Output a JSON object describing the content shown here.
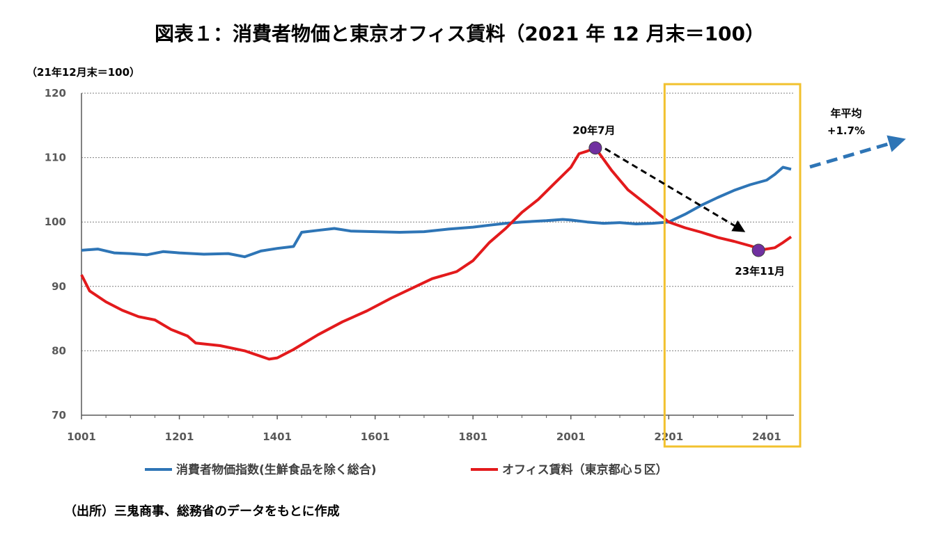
{
  "title": "図表１：消費者物価と東京オフィス賃料（2021 年 12 月末＝100）",
  "source": "（出所）三鬼商事、総務省のデータをもとに作成",
  "colors": {
    "cpi": "#2E75B6",
    "rent": "#E31A1C",
    "highlight": "#F2C12E",
    "marker": "#7030A0",
    "grid": "#7F7F7F"
  },
  "chart_data": {
    "type": "line",
    "unit_label": "（21年12月末＝100）",
    "ylim": [
      70,
      120
    ],
    "yticks": [
      70,
      80,
      90,
      100,
      110,
      120
    ],
    "x_start": "2010-01",
    "x_end": "2024-06",
    "xtick_labels": [
      "1001",
      "1201",
      "1401",
      "1601",
      "1801",
      "2001",
      "2201",
      "2401"
    ],
    "xtick_months": [
      0,
      24,
      48,
      72,
      96,
      120,
      144,
      168
    ],
    "grid": true,
    "series": [
      {
        "name": "消費者物価指数(生鮮食品を除く総合)",
        "color": "#2E75B6",
        "points": [
          [
            0,
            95.6
          ],
          [
            4,
            95.8
          ],
          [
            8,
            95.2
          ],
          [
            12,
            95.1
          ],
          [
            16,
            94.9
          ],
          [
            20,
            95.4
          ],
          [
            24,
            95.2
          ],
          [
            30,
            95.0
          ],
          [
            36,
            95.1
          ],
          [
            40,
            94.6
          ],
          [
            44,
            95.5
          ],
          [
            48,
            95.9
          ],
          [
            52,
            96.2
          ],
          [
            54,
            98.4
          ],
          [
            58,
            98.7
          ],
          [
            62,
            99.0
          ],
          [
            66,
            98.6
          ],
          [
            72,
            98.5
          ],
          [
            78,
            98.4
          ],
          [
            84,
            98.5
          ],
          [
            90,
            98.9
          ],
          [
            96,
            99.2
          ],
          [
            100,
            99.5
          ],
          [
            104,
            99.8
          ],
          [
            108,
            100.0
          ],
          [
            114,
            100.2
          ],
          [
            118,
            100.4
          ],
          [
            120,
            100.3
          ],
          [
            124,
            100.0
          ],
          [
            128,
            99.8
          ],
          [
            132,
            99.9
          ],
          [
            136,
            99.7
          ],
          [
            140,
            99.8
          ],
          [
            144,
            100.0
          ],
          [
            148,
            101.2
          ],
          [
            152,
            102.6
          ],
          [
            156,
            103.8
          ],
          [
            160,
            104.9
          ],
          [
            164,
            105.8
          ],
          [
            168,
            106.5
          ],
          [
            170,
            107.4
          ],
          [
            172,
            108.5
          ],
          [
            174,
            108.2
          ]
        ]
      },
      {
        "name": "オフィス賃料（東京都心５区）",
        "color": "#E31A1C",
        "points": [
          [
            0,
            91.8
          ],
          [
            2,
            89.3
          ],
          [
            6,
            87.6
          ],
          [
            10,
            86.3
          ],
          [
            14,
            85.3
          ],
          [
            18,
            84.8
          ],
          [
            22,
            83.3
          ],
          [
            26,
            82.3
          ],
          [
            28,
            81.2
          ],
          [
            34,
            80.8
          ],
          [
            40,
            80.0
          ],
          [
            46,
            78.7
          ],
          [
            48,
            78.9
          ],
          [
            52,
            80.2
          ],
          [
            58,
            82.5
          ],
          [
            64,
            84.5
          ],
          [
            70,
            86.2
          ],
          [
            76,
            88.2
          ],
          [
            82,
            90.0
          ],
          [
            86,
            91.2
          ],
          [
            92,
            92.3
          ],
          [
            96,
            94.0
          ],
          [
            100,
            96.8
          ],
          [
            104,
            99.0
          ],
          [
            108,
            101.5
          ],
          [
            112,
            103.5
          ],
          [
            116,
            106.0
          ],
          [
            120,
            108.5
          ],
          [
            122,
            110.6
          ],
          [
            124,
            111.0
          ],
          [
            126,
            111.5
          ],
          [
            130,
            108.0
          ],
          [
            134,
            105.0
          ],
          [
            138,
            103.0
          ],
          [
            142,
            101.0
          ],
          [
            144,
            100.0
          ],
          [
            148,
            99.1
          ],
          [
            152,
            98.4
          ],
          [
            156,
            97.6
          ],
          [
            160,
            97.0
          ],
          [
            164,
            96.3
          ],
          [
            167,
            95.7
          ],
          [
            170,
            96.0
          ],
          [
            172,
            96.8
          ],
          [
            174,
            97.7
          ]
        ]
      }
    ],
    "highlight_window": {
      "from_label": "2201",
      "to_label": "2406"
    },
    "annotations": {
      "peak_label": "20年7月",
      "peak_point": [
        126,
        111.5
      ],
      "trough_label": "23年11月",
      "trough_point": [
        166,
        95.6
      ],
      "trend_label_1": "年平均",
      "trend_label_2": "+1.7%"
    }
  }
}
